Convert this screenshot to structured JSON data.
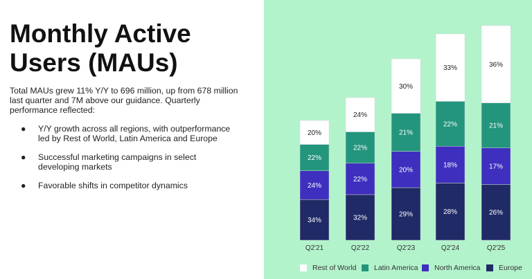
{
  "title": "Monthly Active Users (MAUs)",
  "intro": "Total MAUs grew 11% Y/Y to 696 million, up from 678 million last quarter and 7M above our guidance. Quarterly performance reflected:",
  "bullets": [
    "Y/Y growth across all regions, with outperformance led by Rest of World, Latin America and Europe",
    "Successful marketing campaigns in select developing markets",
    "Favorable shifts in competitor dynamics"
  ],
  "bullet_glyph": "●",
  "colors": {
    "background_right": "#b3f3cc",
    "Rest of World": "#ffffff",
    "Latin America": "#23957d",
    "North America": "#3e2fbf",
    "Europe": "#202a66"
  },
  "chart_data": {
    "type": "bar",
    "stacked": true,
    "categories": [
      "Q2'21",
      "Q2'22",
      "Q2'23",
      "Q2'24",
      "Q2'25"
    ],
    "series": [
      {
        "name": "Europe",
        "values": [
          34,
          32,
          29,
          28,
          26
        ],
        "labels": [
          "34%",
          "32%",
          "29%",
          "28%",
          "26%"
        ]
      },
      {
        "name": "North America",
        "values": [
          24,
          22,
          20,
          18,
          17
        ],
        "labels": [
          "24%",
          "22%",
          "20%",
          "18%",
          "17%"
        ]
      },
      {
        "name": "Latin America",
        "values": [
          22,
          22,
          21,
          22,
          21
        ],
        "labels": [
          "22%",
          "22%",
          "21%",
          "22%",
          "21%"
        ]
      },
      {
        "name": "Rest of World",
        "values": [
          20,
          24,
          30,
          33,
          36
        ],
        "labels": [
          "20%",
          "24%",
          "30%",
          "33%",
          "36%"
        ]
      }
    ],
    "legend": [
      "Rest of World",
      "Latin America",
      "North America",
      "Europe"
    ],
    "legend_position": "bottom",
    "grid": false,
    "title": "",
    "xlabel": "",
    "ylabel": ""
  }
}
